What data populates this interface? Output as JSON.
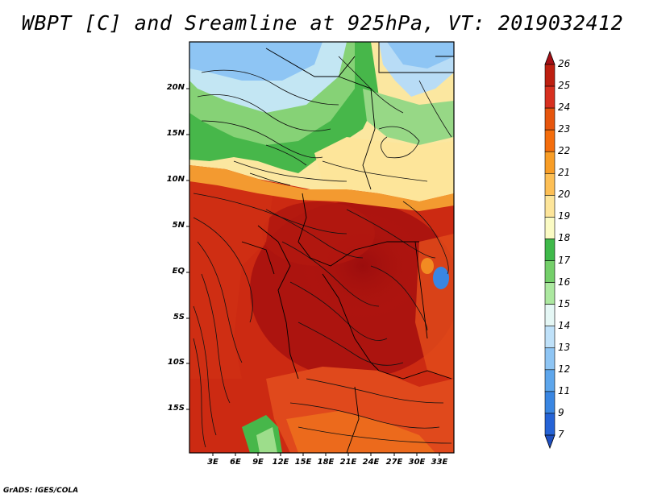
{
  "title": "WBPT [C] and Sreamline at 925hPa, VT: 2019032412",
  "credit": "GrADS: IGES/COLA",
  "lat_ticks": [
    "20N",
    "15N",
    "10N",
    "5N",
    "EQ",
    "5S",
    "10S",
    "15S"
  ],
  "lon_ticks": [
    "3E",
    "6E",
    "9E",
    "12E",
    "15E",
    "18E",
    "21E",
    "24E",
    "27E",
    "30E",
    "33E"
  ],
  "colorbar": {
    "levels": [
      "26",
      "25",
      "24",
      "23",
      "22",
      "21",
      "20",
      "19",
      "18",
      "17",
      "16",
      "15",
      "14",
      "13",
      "12",
      "11",
      "9",
      "7"
    ],
    "colors": [
      "#a50f15",
      "#bd1f10",
      "#d7301f",
      "#e6550d",
      "#f46d0c",
      "#f89d26",
      "#fdbf55",
      "#fde59a",
      "#fbfbc4",
      "#3fb94a",
      "#74cf6a",
      "#ace8a0",
      "#e5f7f5",
      "#bfe1f9",
      "#8ec5f4",
      "#5da6ec",
      "#3a86e2",
      "#2563d6",
      "#1e4fc0"
    ]
  }
}
